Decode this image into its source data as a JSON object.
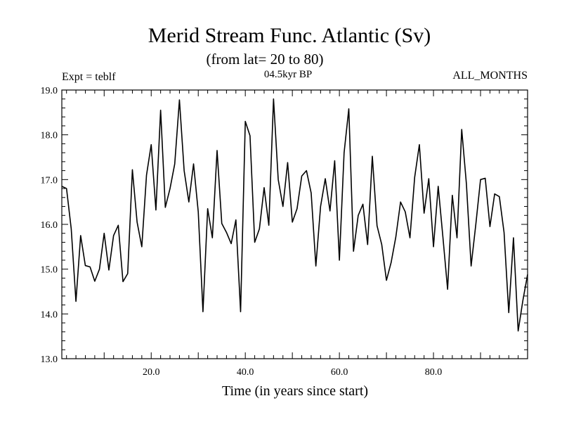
{
  "chart_data": {
    "type": "line",
    "title": "Merid Stream Func. Atlantic (Sv)",
    "subtitle": "(from lat= 20 to 80)",
    "center_label": "04.5kyr BP",
    "left_label": "Expt = teblf",
    "right_label": "ALL_MONTHS",
    "xlabel": "Time (in years since start)",
    "ylabel": "",
    "xlim": [
      1,
      100
    ],
    "ylim": [
      13.0,
      19.0
    ],
    "x_ticks": [
      20,
      40,
      60,
      80
    ],
    "x_tick_labels": [
      "20.0",
      "40.0",
      "60.0",
      "80.0"
    ],
    "y_ticks": [
      13,
      14,
      15,
      16,
      17,
      18,
      19
    ],
    "y_tick_labels": [
      "13.0",
      "14.0",
      "15.0",
      "16.0",
      "17.0",
      "18.0",
      "19.0"
    ],
    "x": [
      1,
      2,
      3,
      4,
      5,
      6,
      7,
      8,
      9,
      10,
      11,
      12,
      13,
      14,
      15,
      16,
      17,
      18,
      19,
      20,
      21,
      22,
      23,
      24,
      25,
      26,
      27,
      28,
      29,
      30,
      31,
      32,
      33,
      34,
      35,
      36,
      37,
      38,
      39,
      40,
      41,
      42,
      43,
      44,
      45,
      46,
      47,
      48,
      49,
      50,
      51,
      52,
      53,
      54,
      55,
      56,
      57,
      58,
      59,
      60,
      61,
      62,
      63,
      64,
      65,
      66,
      67,
      68,
      69,
      70,
      71,
      72,
      73,
      74,
      75,
      76,
      77,
      78,
      79,
      80,
      81,
      82,
      83,
      84,
      85,
      86,
      87,
      88,
      89,
      90,
      91,
      92,
      93,
      94,
      95,
      96,
      97,
      98,
      99,
      100
    ],
    "series": [
      {
        "name": "Merid Stream Func. Atlantic",
        "values": [
          16.85,
          16.8,
          15.9,
          14.28,
          15.75,
          15.08,
          15.05,
          14.73,
          15.0,
          15.8,
          14.98,
          15.75,
          15.98,
          14.72,
          14.9,
          17.22,
          16.05,
          15.5,
          17.1,
          17.78,
          16.32,
          18.55,
          16.38,
          16.8,
          17.35,
          18.78,
          17.2,
          16.5,
          17.35,
          16.28,
          14.05,
          16.35,
          15.7,
          17.65,
          16.02,
          15.82,
          15.57,
          16.1,
          14.05,
          18.3,
          17.98,
          15.6,
          15.9,
          16.82,
          15.98,
          18.8,
          17.0,
          16.4,
          17.38,
          16.05,
          16.35,
          17.08,
          17.2,
          16.7,
          15.07,
          16.4,
          17.02,
          16.3,
          17.42,
          15.2,
          17.6,
          18.58,
          15.4,
          16.2,
          16.45,
          15.55,
          17.52,
          15.97,
          15.55,
          14.75,
          15.15,
          15.72,
          16.5,
          16.28,
          15.7,
          17.05,
          17.78,
          16.25,
          17.02,
          15.5,
          16.85,
          15.72,
          14.55,
          16.65,
          15.7,
          18.12,
          16.9,
          15.07,
          16.0,
          17.0,
          17.03,
          15.95,
          16.68,
          16.62,
          15.82,
          14.03,
          15.7,
          13.62,
          14.3,
          14.88
        ]
      }
    ],
    "grid": false
  }
}
